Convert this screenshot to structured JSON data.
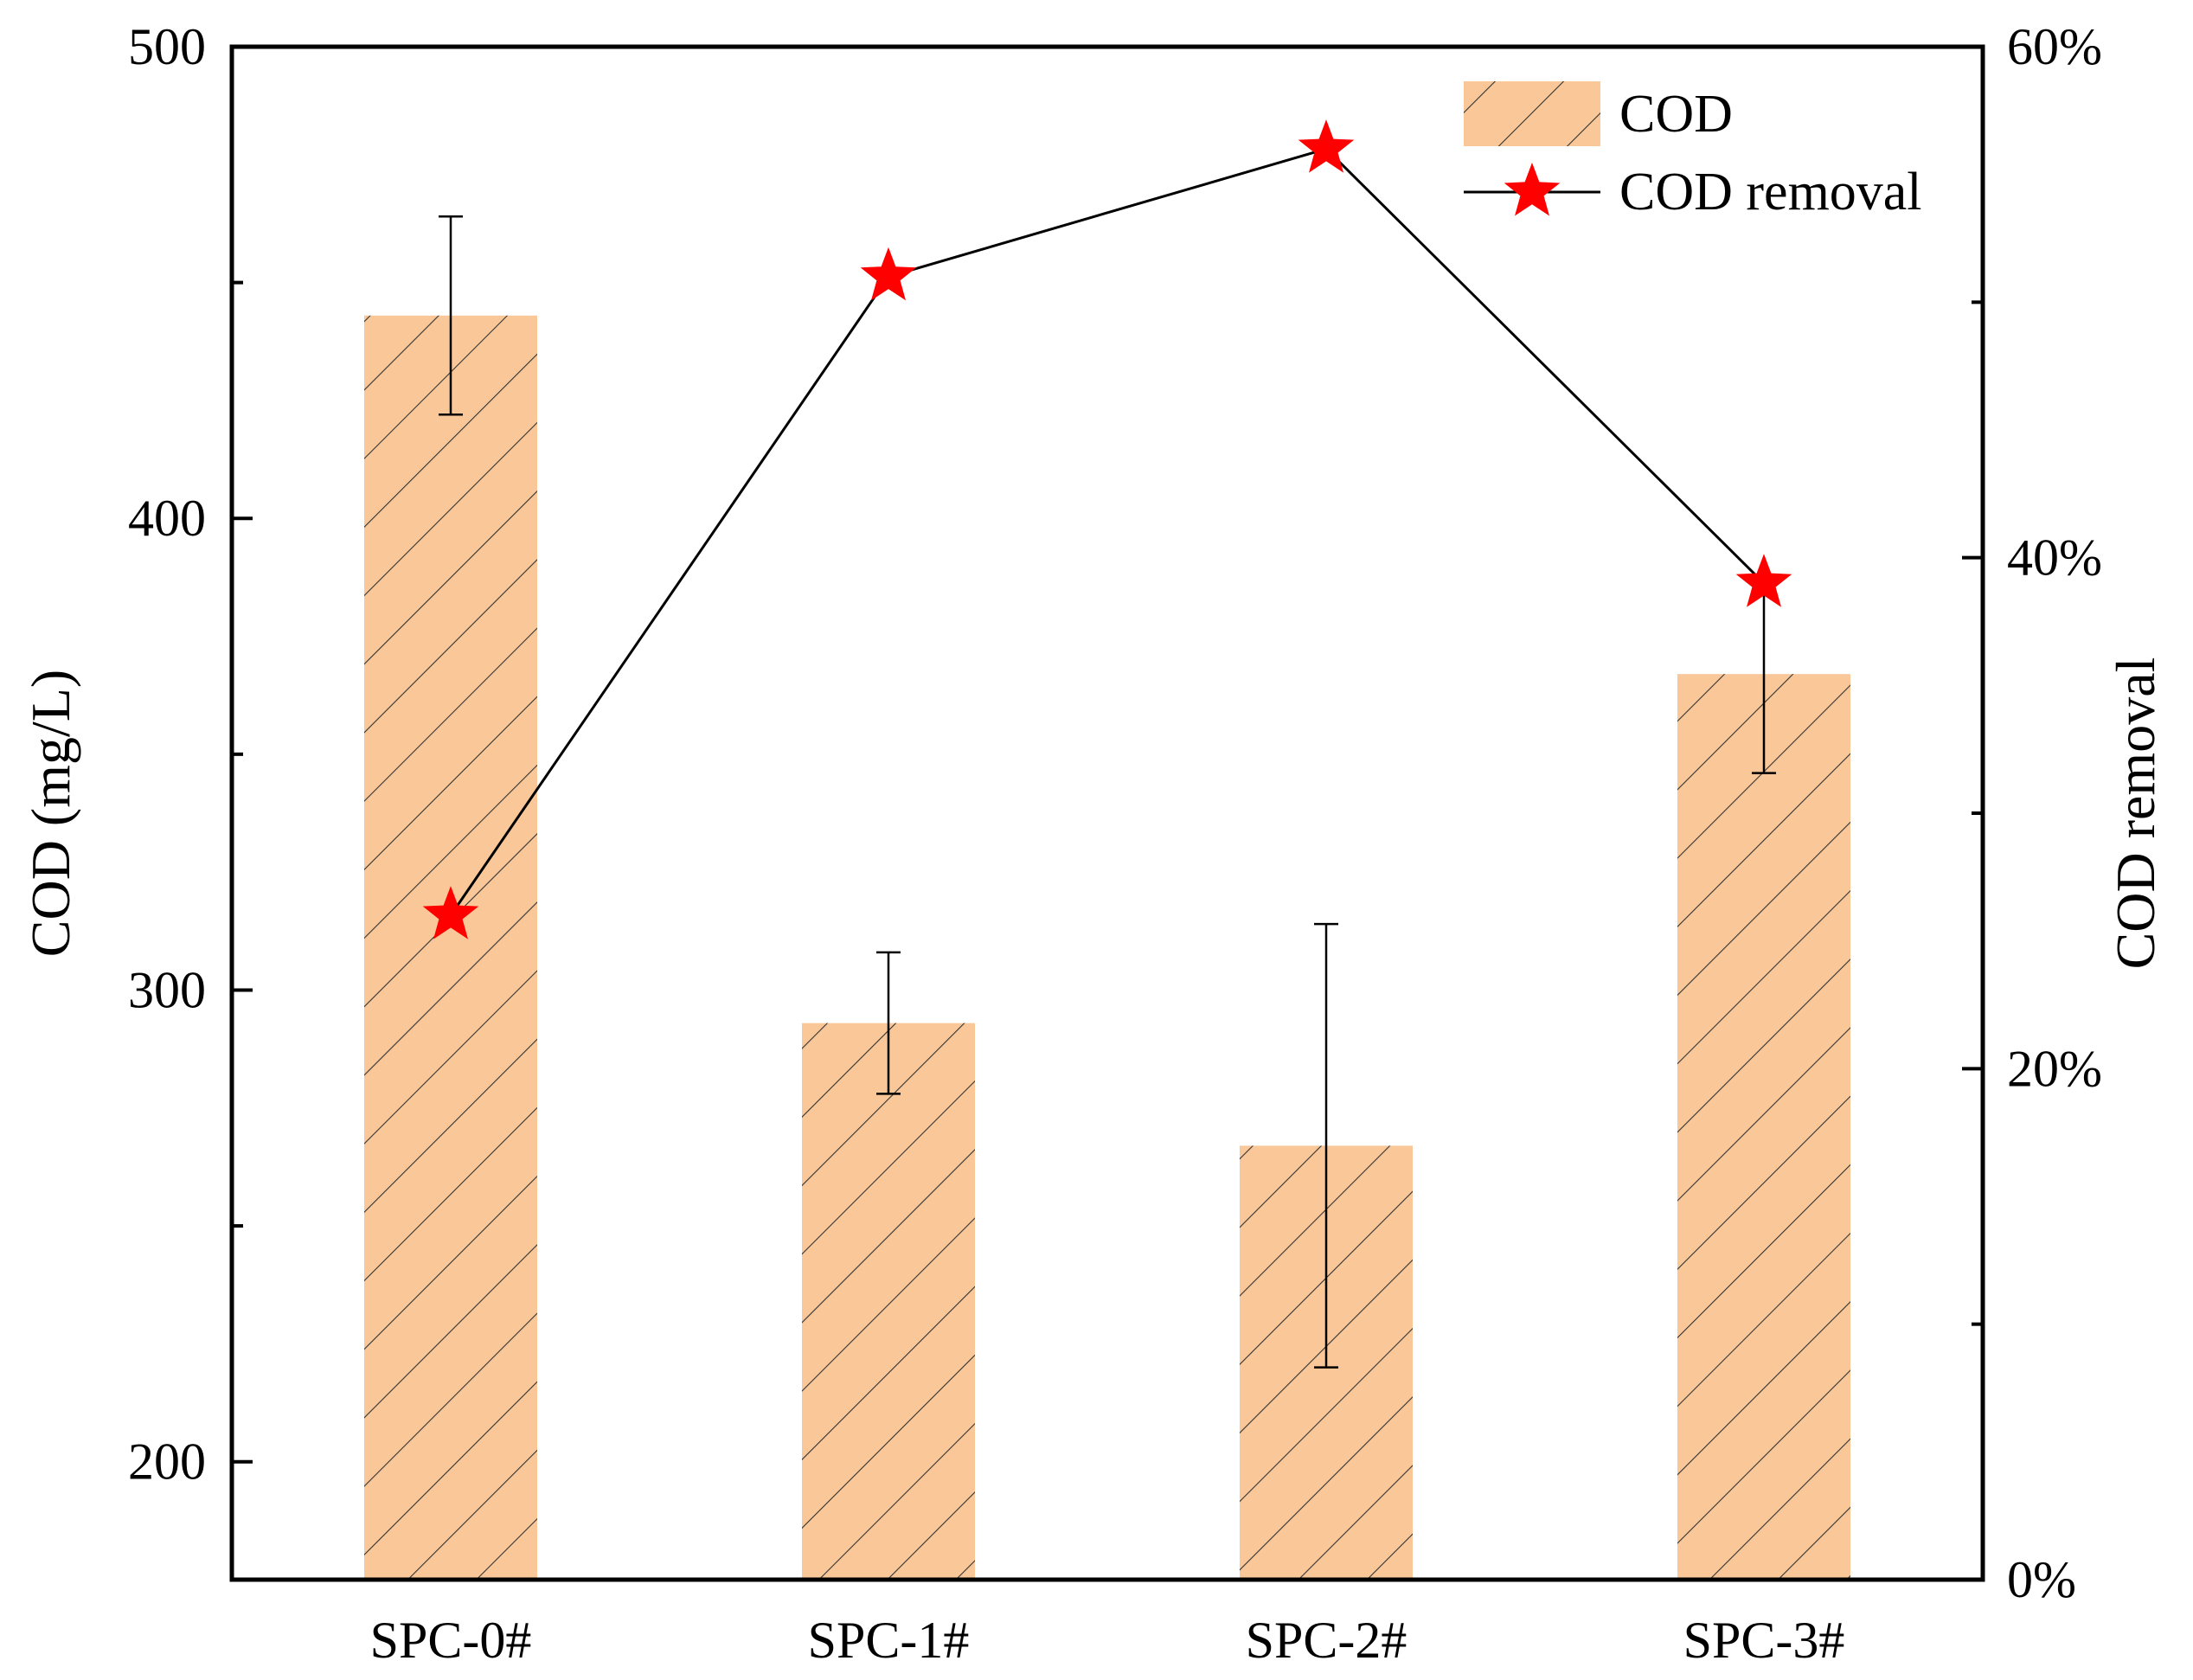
{
  "chart_data": {
    "type": "bar",
    "categories": [
      "SPC-0#",
      "SPC-1#",
      "SPC-2#",
      "SPC-3#"
    ],
    "series": [
      {
        "name": "COD",
        "kind": "bar",
        "axis": "left",
        "values": [
          443,
          293,
          267,
          367
        ],
        "error": [
          21,
          15,
          47,
          21
        ],
        "color": "#FAC898",
        "hatch_color": "#333333"
      },
      {
        "name": "COD removal",
        "kind": "line",
        "axis": "right",
        "values": [
          26,
          51,
          56,
          39
        ],
        "color": "#000000",
        "marker": "star",
        "marker_color": "#FF0000"
      }
    ],
    "y_left": {
      "label": "COD (mg/L)",
      "ylim": [
        175,
        500
      ],
      "ticks": [
        200,
        300,
        400,
        500
      ],
      "tick_labels": [
        "200",
        "300",
        "400",
        "500"
      ]
    },
    "y_right": {
      "label": "COD removal",
      "ylim": [
        0,
        60
      ],
      "ticks": [
        0,
        20,
        40,
        60
      ],
      "tick_labels": [
        "0%",
        "20%",
        "40%",
        "60%"
      ]
    },
    "legend": {
      "position": "top-right",
      "entries": [
        "COD",
        "COD removal"
      ]
    },
    "grid": false
  }
}
